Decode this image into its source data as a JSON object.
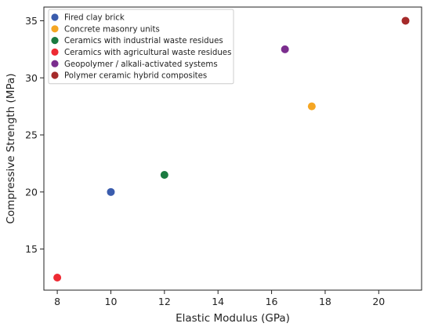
{
  "chart_data": {
    "type": "scatter",
    "xlabel": "Elastic Modulus (GPa)",
    "ylabel": "Compressive Strength (MPa)",
    "xlim": [
      7.5,
      21.6
    ],
    "ylim": [
      11.4,
      36.2
    ],
    "xticks": [
      8,
      10,
      12,
      14,
      16,
      18,
      20
    ],
    "yticks": [
      15,
      20,
      25,
      30,
      35
    ],
    "grid": false,
    "legend_position": "top-left",
    "series": [
      {
        "name": "Fired clay brick",
        "color": "#3a5cad",
        "x": [
          10
        ],
        "y": [
          20
        ]
      },
      {
        "name": "Concrete masonry units",
        "color": "#f5a623",
        "x": [
          17.5
        ],
        "y": [
          27.5
        ]
      },
      {
        "name": "Ceramics with industrial waste residues",
        "color": "#1a7a40",
        "x": [
          12
        ],
        "y": [
          21.5
        ]
      },
      {
        "name": "Ceramics with agricultural waste residues",
        "color": "#ee2a33",
        "x": [
          8
        ],
        "y": [
          12.5
        ]
      },
      {
        "name": "Geopolymer / alkali-activated systems",
        "color": "#7b2d8e",
        "x": [
          16.5
        ],
        "y": [
          32.5
        ]
      },
      {
        "name": "Polymer ceramic hybrid composites",
        "color": "#a52a2a",
        "x": [
          21
        ],
        "y": [
          35
        ]
      }
    ]
  }
}
